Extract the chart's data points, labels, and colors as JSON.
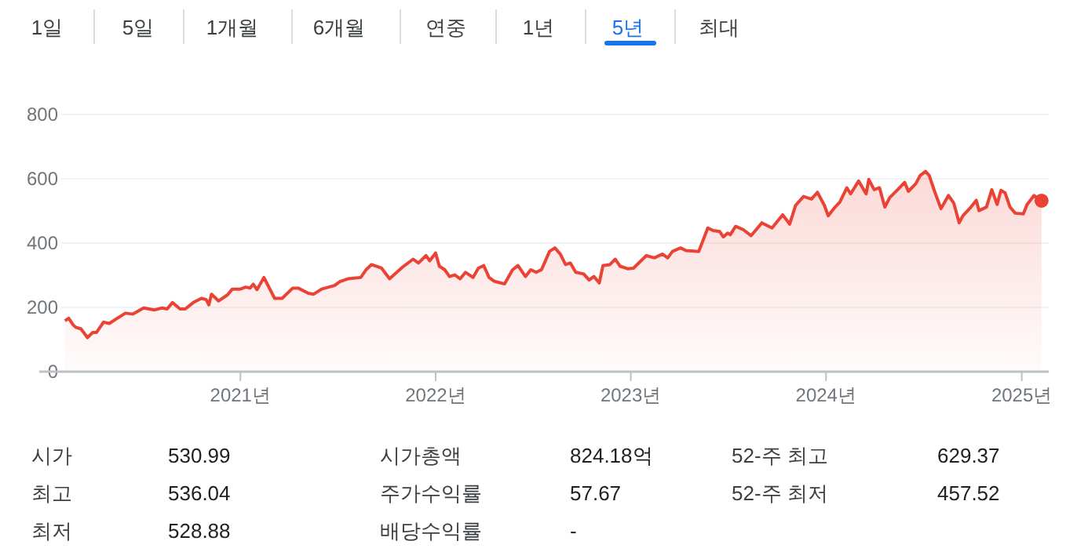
{
  "chart_data": {
    "type": "area",
    "xlim": [
      "2020-02-01",
      "2025-02-19"
    ],
    "xticks": [
      {
        "value": "2021-01-01",
        "label": "2021년"
      },
      {
        "value": "2022-01-01",
        "label": "2022년"
      },
      {
        "value": "2023-01-01",
        "label": "2023년"
      },
      {
        "value": "2024-01-01",
        "label": "2024년"
      },
      {
        "value": "2025-01-01",
        "label": "2025년"
      }
    ],
    "ylim": [
      0,
      800
    ],
    "yticks": [
      0,
      200,
      400,
      600,
      800
    ],
    "grid": "y",
    "annotations": [
      "1일",
      "5일",
      "1개월",
      "6개월",
      "연중",
      "1년",
      "5년",
      "최대",
      "시가",
      "530.99",
      "시가총액",
      "824.18억",
      "52-주 최고",
      "629.37",
      "최고",
      "536.04",
      "주가수익률",
      "57.67",
      "52-주 최저",
      "457.52",
      "최저",
      "528.88",
      "배당수익률",
      "-"
    ],
    "series": [
      {
        "color": "#ea4335",
        "x": [
          "2020-02-08",
          "2020-02-15",
          "2020-02-23",
          "2020-02-28",
          "2020-03-09",
          "2020-03-21",
          "2020-03-31",
          "2020-04-07",
          "2020-04-20",
          "2020-05-01",
          "2020-05-13",
          "2020-05-31",
          "2020-06-14",
          "2020-07-04",
          "2020-07-24",
          "2020-08-07",
          "2020-08-17",
          "2020-08-27",
          "2020-09-10",
          "2020-09-20",
          "2020-10-05",
          "2020-10-20",
          "2020-10-29",
          "2020-11-03",
          "2020-11-08",
          "2020-11-21",
          "2020-12-08",
          "2020-12-17",
          "2021-01-01",
          "2021-01-11",
          "2021-01-19",
          "2021-01-25",
          "2021-02-01",
          "2021-02-14",
          "2021-03-06",
          "2021-03-20",
          "2021-04-09",
          "2021-04-19",
          "2021-05-08",
          "2021-05-18",
          "2021-06-02",
          "2021-06-26",
          "2021-07-06",
          "2021-07-21",
          "2021-08-14",
          "2021-08-24",
          "2021-09-03",
          "2021-09-22",
          "2021-10-07",
          "2021-10-31",
          "2021-11-20",
          "2021-11-30",
          "2021-12-14",
          "2021-12-21",
          "2022-01-01",
          "2022-01-08",
          "2022-01-18",
          "2022-01-27",
          "2022-02-06",
          "2022-02-16",
          "2022-02-26",
          "2022-03-12",
          "2022-03-22",
          "2022-04-01",
          "2022-04-11",
          "2022-04-21",
          "2022-05-10",
          "2022-05-25",
          "2022-06-04",
          "2022-06-18",
          "2022-06-28",
          "2022-07-08",
          "2022-07-18",
          "2022-08-02",
          "2022-08-12",
          "2022-08-22",
          "2022-09-01",
          "2022-09-10",
          "2022-09-20",
          "2022-10-05",
          "2022-10-15",
          "2022-10-24",
          "2022-11-03",
          "2022-11-10",
          "2022-11-23",
          "2022-12-03",
          "2022-12-12",
          "2022-12-27",
          "2023-01-06",
          "2023-01-30",
          "2023-02-14",
          "2023-03-01",
          "2023-03-11",
          "2023-03-20",
          "2023-04-04",
          "2023-04-14",
          "2023-05-08",
          "2023-05-25",
          "2023-06-04",
          "2023-06-16",
          "2023-06-23",
          "2023-07-01",
          "2023-07-06",
          "2023-07-16",
          "2023-07-30",
          "2023-08-14",
          "2023-09-03",
          "2023-09-22",
          "2023-10-12",
          "2023-10-25",
          "2023-11-05",
          "2023-11-20",
          "2023-12-05",
          "2023-12-16",
          "2023-12-29",
          "2024-01-05",
          "2024-01-18",
          "2024-01-27",
          "2024-02-09",
          "2024-02-16",
          "2024-03-02",
          "2024-03-16",
          "2024-03-21",
          "2024-03-31",
          "2024-04-10",
          "2024-04-20",
          "2024-04-29",
          "2024-05-14",
          "2024-05-27",
          "2024-06-03",
          "2024-06-17",
          "2024-06-25",
          "2024-07-05",
          "2024-07-12",
          "2024-07-22",
          "2024-08-03",
          "2024-08-17",
          "2024-08-27",
          "2024-09-06",
          "2024-09-13",
          "2024-09-28",
          "2024-10-08",
          "2024-10-13",
          "2024-10-27",
          "2024-11-06",
          "2024-11-16",
          "2024-11-23",
          "2024-12-01",
          "2024-12-10",
          "2024-12-20",
          "2025-01-04",
          "2025-01-11",
          "2025-01-24",
          "2025-02-07"
        ],
        "values": [
          158,
          166,
          146,
          138,
          133,
          106,
          122,
          122,
          154,
          150,
          163,
          182,
          179,
          198,
          192,
          198,
          195,
          215,
          195,
          195,
          215,
          228,
          224,
          208,
          241,
          220,
          239,
          257,
          257,
          263,
          260,
          272,
          255,
          293,
          228,
          228,
          260,
          260,
          244,
          241,
          257,
          268,
          280,
          289,
          293,
          317,
          333,
          322,
          289,
          325,
          350,
          338,
          361,
          345,
          369,
          328,
          317,
          296,
          301,
          289,
          309,
          293,
          322,
          330,
          293,
          281,
          273,
          317,
          330,
          296,
          317,
          309,
          317,
          374,
          385,
          366,
          333,
          338,
          309,
          304,
          285,
          296,
          276,
          330,
          333,
          350,
          328,
          320,
          322,
          361,
          354,
          366,
          354,
          374,
          385,
          377,
          374,
          447,
          439,
          436,
          419,
          431,
          426,
          452,
          442,
          423,
          463,
          447,
          488,
          459,
          517,
          545,
          537,
          558,
          517,
          485,
          512,
          528,
          572,
          553,
          593,
          553,
          598,
          566,
          572,
          512,
          541,
          566,
          589,
          561,
          585,
          610,
          623,
          610,
          561,
          507,
          548,
          524,
          463,
          485,
          512,
          533,
          501,
          512,
          566,
          520,
          564,
          556,
          512,
          493,
          491,
          520,
          548,
          532
        ]
      },
      {
        "type": "scatter",
        "color": "#ea4335",
        "marker": "circle",
        "x": [
          "2025-02-07"
        ],
        "values": [
          532
        ]
      }
    ]
  }
}
